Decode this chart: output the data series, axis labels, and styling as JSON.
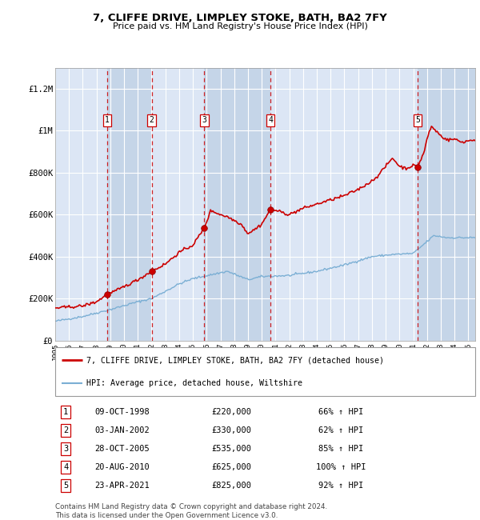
{
  "title": "7, CLIFFE DRIVE, LIMPLEY STOKE, BATH, BA2 7FY",
  "subtitle": "Price paid vs. HM Land Registry's House Price Index (HPI)",
  "legend_house": "7, CLIFFE DRIVE, LIMPLEY STOKE, BATH, BA2 7FY (detached house)",
  "legend_hpi": "HPI: Average price, detached house, Wiltshire",
  "footer1": "Contains HM Land Registry data © Crown copyright and database right 2024.",
  "footer2": "This data is licensed under the Open Government Licence v3.0.",
  "transactions": [
    {
      "num": 1,
      "date": "09-OCT-1998",
      "price": 220000,
      "year": 1998.77,
      "pct": "66%",
      "dir": "↑"
    },
    {
      "num": 2,
      "date": "03-JAN-2002",
      "price": 330000,
      "year": 2002.01,
      "pct": "62%",
      "dir": "↑"
    },
    {
      "num": 3,
      "date": "28-OCT-2005",
      "price": 535000,
      "year": 2005.82,
      "pct": "85%",
      "dir": "↑"
    },
    {
      "num": 4,
      "date": "20-AUG-2010",
      "price": 625000,
      "year": 2010.63,
      "pct": "100%",
      "dir": "↑"
    },
    {
      "num": 5,
      "date": "23-APR-2021",
      "price": 825000,
      "year": 2021.31,
      "pct": "92%",
      "dir": "↑"
    }
  ],
  "hpi_color": "#7bafd4",
  "house_color": "#cc0000",
  "background_color": "#ffffff",
  "plot_bg_color": "#dce6f5",
  "grid_color": "#ffffff",
  "transaction_bg_color": "#c5d5e8",
  "ylim": [
    0,
    1300000
  ],
  "xlim_start": 1995.0,
  "xlim_end": 2025.5,
  "yticks": [
    0,
    200000,
    400000,
    600000,
    800000,
    1000000,
    1200000
  ],
  "ytick_labels": [
    "£0",
    "£200K",
    "£400K",
    "£600K",
    "£800K",
    "£1M",
    "£1.2M"
  ],
  "xticks": [
    1995,
    1996,
    1997,
    1998,
    1999,
    2000,
    2001,
    2002,
    2003,
    2004,
    2005,
    2006,
    2007,
    2008,
    2009,
    2010,
    2011,
    2012,
    2013,
    2014,
    2015,
    2016,
    2017,
    2018,
    2019,
    2020,
    2021,
    2022,
    2023,
    2024,
    2025
  ]
}
